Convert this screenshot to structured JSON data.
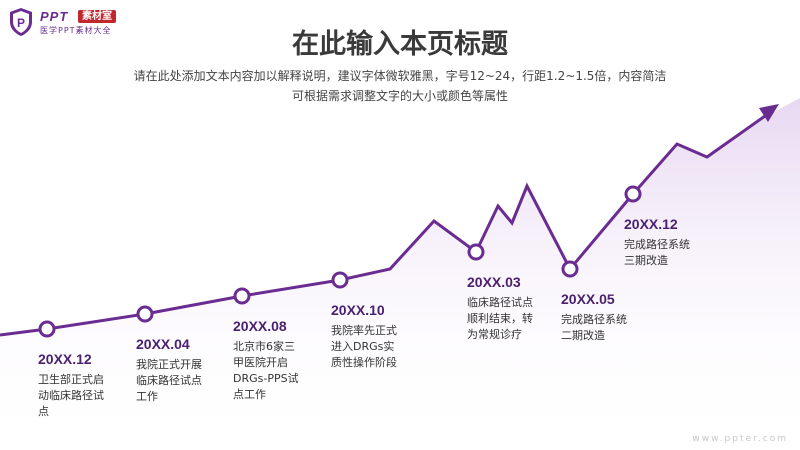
{
  "logo": {
    "brand": "PPT",
    "tag": "素材室",
    "sub": "医学PPT素材大全"
  },
  "title": "在此输入本页标题",
  "subtitle": {
    "line1": "请在此处添加文本内容加以解释说明，建议字体微软雅黑，字号12~24，行距1.2~1.5倍，内容简洁",
    "line2": "可根据需求调整文字的大小或颜色等属性"
  },
  "colors": {
    "accent": "#6b2c91",
    "marker_fill": "#ffffff",
    "area": "#efe5f6"
  },
  "milestones": [
    {
      "year": "20XX.12",
      "desc": "卫生部正式启动临床路径试点"
    },
    {
      "year": "20XX.04",
      "desc": "我院正式开展临床路径试点工作"
    },
    {
      "year": "20XX.08",
      "desc": "北京市6家三甲医院开启DRGs-PPS试点工作"
    },
    {
      "year": "20XX.10",
      "desc": "我院率先正式进入DRGs实质性操作阶段"
    },
    {
      "year": "20XX.03",
      "desc": "临床路径试点顺利结束，转为常规诊疗"
    },
    {
      "year": "20XX.05",
      "desc": "完成路径系统二期改造"
    },
    {
      "year": "20XX.12",
      "desc": "完成路径系统三期改造"
    }
  ],
  "watermark": "www.ppter.com"
}
